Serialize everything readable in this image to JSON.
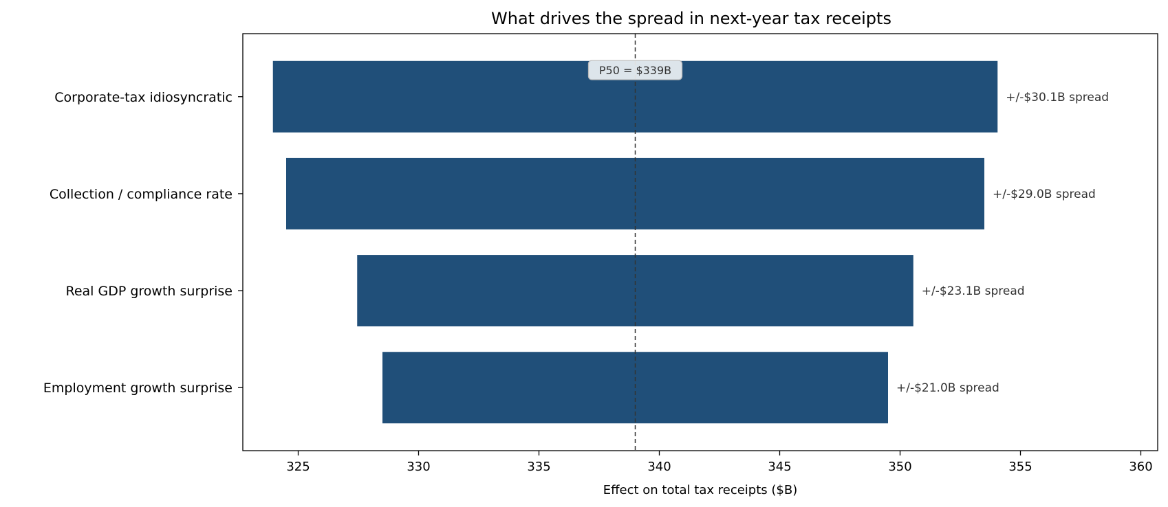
{
  "chart_data": {
    "type": "bar",
    "orientation": "horizontal",
    "title": "What drives the spread in next-year tax receipts",
    "xlabel": "Effect on total tax receipts  ($B)",
    "ylabel": "",
    "xlim": [
      322.7,
      360.7
    ],
    "xticks": [
      325,
      330,
      335,
      340,
      345,
      350,
      355,
      360
    ],
    "categories": [
      "Corporate-tax idiosyncratic",
      "Collection / compliance rate",
      "Real GDP growth surprise",
      "Employment growth surprise"
    ],
    "ranges": [
      {
        "low": 323.95,
        "high": 354.05
      },
      {
        "low": 324.5,
        "high": 353.5
      },
      {
        "low": 327.45,
        "high": 350.55
      },
      {
        "low": 328.5,
        "high": 349.5
      }
    ],
    "data_labels": [
      "+/-$30.1B spread",
      "+/-$29.0B spread",
      "+/-$23.1B spread",
      "+/-$21.0B spread"
    ],
    "reference_line": {
      "value": 339,
      "label": "P50 = $339B"
    },
    "bar_color": "#204f79",
    "grid": false,
    "legend": "none"
  }
}
